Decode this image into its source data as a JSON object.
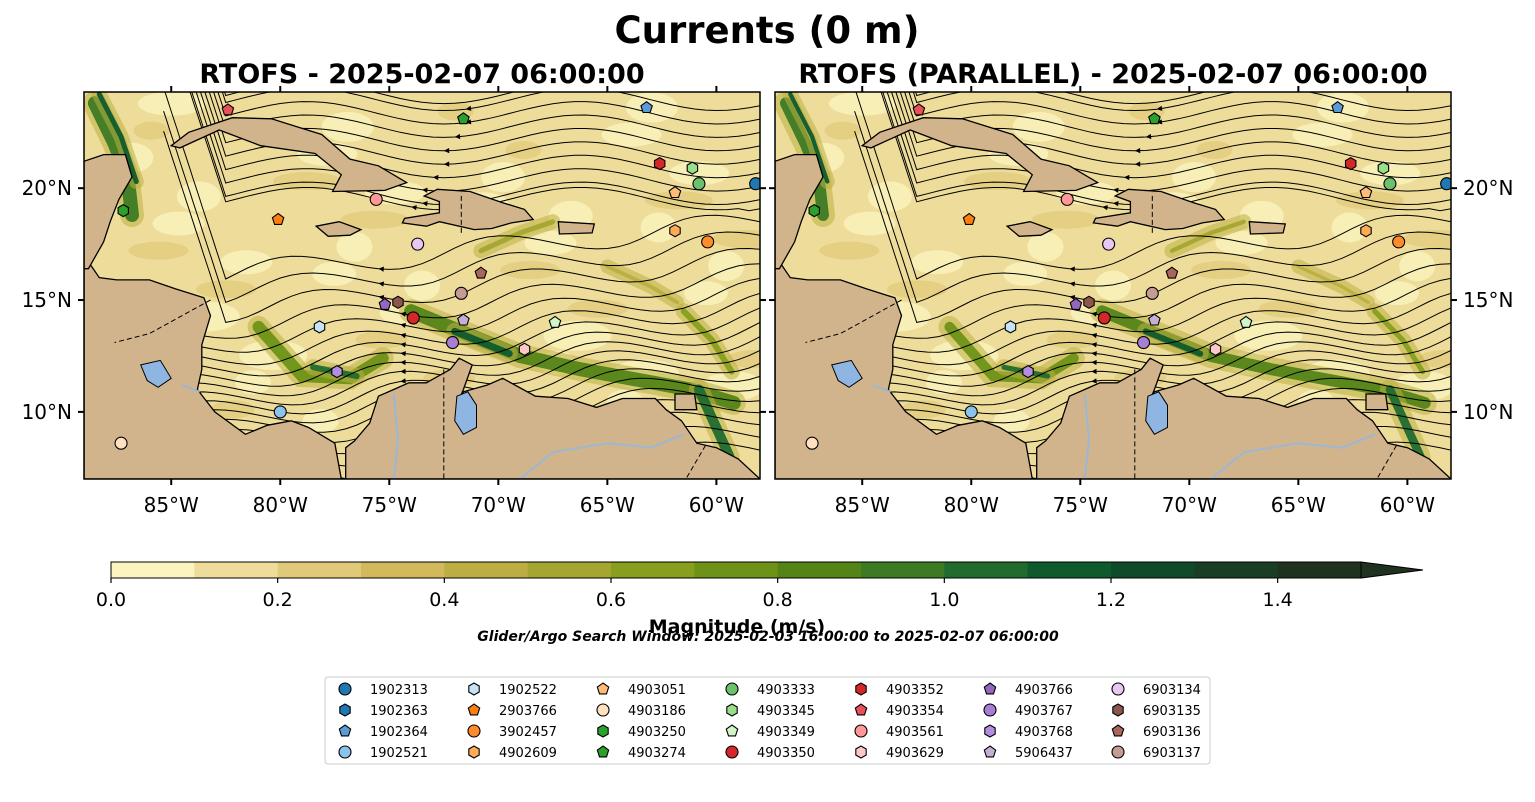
{
  "figure": {
    "title": "Currents (0 m)",
    "colorbar_label": "Magnitude (m/s)",
    "search_window": "Glider/Argo Search Window: 2025-02-03 16:00:00 to 2025-02-07 06:00:00"
  },
  "chart_data": {
    "type": "heatmap",
    "variable": "surface current magnitude with streamlines",
    "panels": [
      {
        "title": "RTOFS - 2025-02-07 06:00:00",
        "tick_labels_side": "left"
      },
      {
        "title": "RTOFS (PARALLEL) - 2025-02-07 06:00:00",
        "tick_labels_side": "right"
      }
    ],
    "extent": {
      "lon": [
        -89,
        -58
      ],
      "lat": [
        7,
        24.3
      ]
    },
    "x_ticks": [
      -85,
      -80,
      -75,
      -70,
      -65,
      -60
    ],
    "x_tick_labels": [
      "85°W",
      "80°W",
      "75°W",
      "70°W",
      "65°W",
      "60°W"
    ],
    "y_ticks": [
      10,
      15,
      20
    ],
    "y_tick_labels": [
      "10°N",
      "15°N",
      "20°N"
    ],
    "colorbar": {
      "range": [
        0,
        1.5
      ],
      "extend": "max",
      "step": 0.1,
      "ticks": [
        0.0,
        0.2,
        0.4,
        0.6,
        0.8,
        1.0,
        1.2,
        1.4
      ],
      "tick_labels": [
        "0.0",
        "0.2",
        "0.4",
        "0.6",
        "0.8",
        "1.0",
        "1.2",
        "1.4"
      ],
      "colors": [
        "#fbf4bf",
        "#eedd9a",
        "#e0c979",
        "#d1b95c",
        "#bcae42",
        "#a4a630",
        "#889e1e",
        "#6e9217",
        "#548418",
        "#3c7a24",
        "#216b2f",
        "#0e5a2c",
        "#0f4a2a",
        "#1a3d25",
        "#1f3220"
      ]
    },
    "floats": [
      {
        "id": "1902313",
        "marker": "circle",
        "color": "#1f77b4",
        "lon": -58.2,
        "lat": 20.2
      },
      {
        "id": "1902363",
        "marker": "hexagon",
        "color": "#1f77b4",
        "lon": null,
        "lat": null
      },
      {
        "id": "1902364",
        "marker": "pentagon",
        "color": "#5b9bd5",
        "lon": -63.2,
        "lat": 23.6
      },
      {
        "id": "1902521",
        "marker": "circle",
        "color": "#8cc3ec",
        "lon": -80.0,
        "lat": 10.0
      },
      {
        "id": "1902522",
        "marker": "hexagon",
        "color": "#c6e3f8",
        "lon": -78.2,
        "lat": 13.8
      },
      {
        "id": "2903766",
        "marker": "pentagon",
        "color": "#ff7f0e",
        "lon": -80.1,
        "lat": 18.6
      },
      {
        "id": "3902457",
        "marker": "circle",
        "color": "#ff8c2a",
        "lon": -60.4,
        "lat": 17.6
      },
      {
        "id": "4902609",
        "marker": "hexagon",
        "color": "#ffaa55",
        "lon": -61.9,
        "lat": 18.1
      },
      {
        "id": "4903051",
        "marker": "pentagon",
        "color": "#ffbb78",
        "lon": -61.9,
        "lat": 19.8
      },
      {
        "id": "4903186",
        "marker": "circle",
        "color": "#ffe0c0",
        "lon": -87.3,
        "lat": 8.6
      },
      {
        "id": "4903250",
        "marker": "hexagon",
        "color": "#2ca02c",
        "lon": -87.2,
        "lat": 19.0
      },
      {
        "id": "4903274",
        "marker": "pentagon",
        "color": "#2ca02c",
        "lon": -71.6,
        "lat": 23.1
      },
      {
        "id": "4903333",
        "marker": "circle",
        "color": "#6cc26c",
        "lon": -60.8,
        "lat": 20.2
      },
      {
        "id": "4903345",
        "marker": "hexagon",
        "color": "#98df8a",
        "lon": -61.1,
        "lat": 20.9
      },
      {
        "id": "4903349",
        "marker": "pentagon",
        "color": "#d0f5c8",
        "lon": -67.4,
        "lat": 14.0
      },
      {
        "id": "4903350",
        "marker": "circle",
        "color": "#d62728",
        "lon": -73.9,
        "lat": 14.2
      },
      {
        "id": "4903352",
        "marker": "hexagon",
        "color": "#d62728",
        "lon": -62.6,
        "lat": 21.1
      },
      {
        "id": "4903354",
        "marker": "pentagon",
        "color": "#e8505a",
        "lon": -82.4,
        "lat": 23.5
      },
      {
        "id": "4903561",
        "marker": "circle",
        "color": "#ff9896",
        "lon": -75.6,
        "lat": 19.5
      },
      {
        "id": "4903629",
        "marker": "hexagon",
        "color": "#ffc8c8",
        "lon": -68.8,
        "lat": 12.8
      },
      {
        "id": "4903766",
        "marker": "pentagon",
        "color": "#9467bd",
        "lon": -75.2,
        "lat": 14.8
      },
      {
        "id": "4903767",
        "marker": "circle",
        "color": "#a97fd6",
        "lon": -72.1,
        "lat": 13.1
      },
      {
        "id": "4903768",
        "marker": "hexagon",
        "color": "#b38de0",
        "lon": -77.4,
        "lat": 11.8
      },
      {
        "id": "5906437",
        "marker": "pentagon",
        "color": "#c5b0d5",
        "lon": -71.6,
        "lat": 14.1
      },
      {
        "id": "6903134",
        "marker": "circle",
        "color": "#e8c8f2",
        "lon": -73.7,
        "lat": 17.5
      },
      {
        "id": "6903135",
        "marker": "hexagon",
        "color": "#8c564b",
        "lon": -74.6,
        "lat": 14.9
      },
      {
        "id": "6903136",
        "marker": "pentagon",
        "color": "#a9675b",
        "lon": -70.8,
        "lat": 16.2
      },
      {
        "id": "6903137",
        "marker": "circle",
        "color": "#c49c94",
        "lon": -71.7,
        "lat": 15.3
      }
    ]
  },
  "colors": {
    "land": "#d2b48c",
    "lake": "#8fb6e2",
    "river": "#9bb7d4",
    "streamline": "#000000"
  }
}
